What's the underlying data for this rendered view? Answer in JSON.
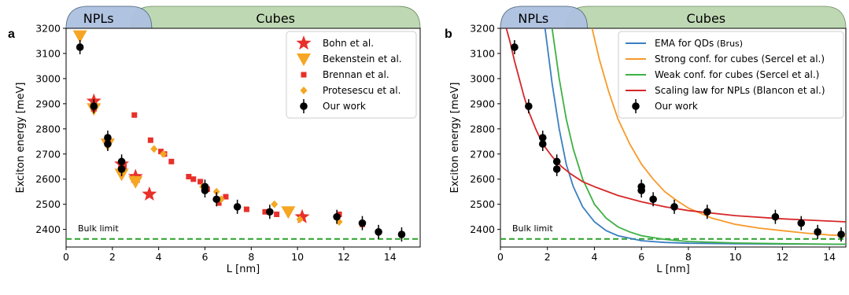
{
  "chart_data": [
    {
      "panel_label": "a",
      "type": "scatter",
      "xlabel": "L [nm]",
      "ylabel": "Exciton energy [meV]",
      "xlim": [
        0,
        15.3
      ],
      "ylim": [
        2330,
        3200
      ],
      "xticks": [
        0,
        2,
        4,
        6,
        8,
        10,
        12,
        14
      ],
      "yticks": [
        2400,
        2500,
        2600,
        2700,
        2800,
        2900,
        3000,
        3100,
        3200
      ],
      "grid": false,
      "legend_position": "top-right",
      "bands": [
        {
          "label": "NPLs",
          "color": "#c8d6f0",
          "x0": 0,
          "x1": 3.7
        },
        {
          "label": "Cubes",
          "color": "#bcd6b0",
          "x0": 2.8,
          "x1": 15.3
        }
      ],
      "reference_lines": [
        {
          "label": "Bulk limit",
          "y": 2362,
          "color": "#2ca02c",
          "style": "dashed"
        }
      ],
      "series": [
        {
          "name": "Bohn et al.",
          "marker": "star",
          "color": "#e8302a",
          "x": [
            1.2,
            2.4,
            3.0,
            3.6,
            10.2
          ],
          "y": [
            2910,
            2660,
            2610,
            2540,
            2450
          ]
        },
        {
          "name": "Bekenstein et al.",
          "marker": "triangle-down",
          "color": "#f5a623",
          "x": [
            0.6,
            1.2,
            1.8,
            2.4,
            3.0,
            9.6
          ],
          "y": [
            3170,
            2880,
            2740,
            2620,
            2590,
            2470
          ]
        },
        {
          "name": "Brennan et al.",
          "marker": "square",
          "color": "#e8302a",
          "x": [
            1.2,
            1.8,
            2.5,
            2.95,
            3.65,
            4.1,
            4.25,
            4.55,
            5.3,
            5.5,
            5.8,
            6.1,
            6.6,
            6.9,
            7.8,
            8.6,
            9.1,
            11.8,
            12.8
          ],
          "y": [
            2880,
            2760,
            2650,
            2855,
            2755,
            2710,
            2700,
            2670,
            2610,
            2600,
            2590,
            2560,
            2505,
            2530,
            2480,
            2470,
            2460,
            2460,
            2420
          ]
        },
        {
          "name": "Protesescu et al.",
          "marker": "diamond",
          "color": "#f5a623",
          "x": [
            1.2,
            1.8,
            2.4,
            2.9,
            3.8,
            4.2,
            5.9,
            6.5,
            6.7,
            9.0,
            10.1,
            11.8
          ],
          "y": [
            2890,
            2740,
            2630,
            2600,
            2720,
            2700,
            2570,
            2550,
            2520,
            2500,
            2440,
            2430
          ]
        },
        {
          "name": "Our work",
          "marker": "circle-errorbar",
          "color": "#000000",
          "x": [
            0.6,
            1.2,
            1.8,
            1.8,
            2.4,
            2.4,
            6.0,
            6.0,
            6.5,
            7.4,
            8.8,
            11.7,
            12.8,
            13.5,
            14.5
          ],
          "y": [
            3125,
            2890,
            2765,
            2740,
            2670,
            2640,
            2570,
            2555,
            2520,
            2490,
            2470,
            2450,
            2425,
            2390,
            2380
          ]
        }
      ]
    },
    {
      "panel_label": "b",
      "type": "line",
      "xlabel": "L [nm]",
      "ylabel": "Exciton energy [meV]",
      "xlim": [
        0,
        14.7
      ],
      "ylim": [
        2330,
        3200
      ],
      "xticks": [
        0,
        2,
        4,
        6,
        8,
        10,
        12,
        14
      ],
      "yticks": [
        2400,
        2500,
        2600,
        2700,
        2800,
        2900,
        3000,
        3100,
        3200
      ],
      "grid": false,
      "legend_position": "top-right",
      "bands": [
        {
          "label": "NPLs",
          "color": "#c8d6f0",
          "x0": 0,
          "x1": 3.7
        },
        {
          "label": "Cubes",
          "color": "#bcd6b0",
          "x0": 2.8,
          "x1": 14.7
        }
      ],
      "reference_lines": [
        {
          "label": "Bulk limit",
          "y": 2362,
          "color": "#2ca02c",
          "style": "dashed"
        }
      ],
      "series": [
        {
          "name": "EMA for QDs",
          "name_suffix": "(Brus)",
          "color": "#3a7fc0",
          "x": [
            1.9,
            2.2,
            2.5,
            2.8,
            3.1,
            3.5,
            4.0,
            4.5,
            5.0,
            6.0,
            7.0,
            8.0,
            10.0,
            12.0,
            14.7
          ],
          "y": [
            3200,
            2980,
            2800,
            2660,
            2570,
            2490,
            2430,
            2395,
            2375,
            2355,
            2348,
            2345,
            2343,
            2342,
            2341
          ]
        },
        {
          "name": "Strong conf. for cubes (Sercel et al.)",
          "color": "#f79a2a",
          "x": [
            3.9,
            4.2,
            4.6,
            5.0,
            5.5,
            6.0,
            6.5,
            7.0,
            7.5,
            8.0,
            9.0,
            10.0,
            11.0,
            12.0,
            13.0,
            14.0,
            14.7
          ],
          "y": [
            3200,
            3080,
            2950,
            2840,
            2740,
            2660,
            2600,
            2550,
            2515,
            2485,
            2445,
            2420,
            2405,
            2395,
            2385,
            2378,
            2375
          ]
        },
        {
          "name": "Weak conf. for cubes (Sercel et al.)",
          "color": "#3db043",
          "x": [
            2.2,
            2.5,
            2.8,
            3.1,
            3.5,
            4.0,
            4.5,
            5.0,
            5.5,
            6.0,
            7.0,
            8.0,
            10.0,
            12.0,
            14.7
          ],
          "y": [
            3200,
            3000,
            2840,
            2720,
            2600,
            2500,
            2445,
            2410,
            2390,
            2375,
            2360,
            2352,
            2346,
            2343,
            2341
          ]
        },
        {
          "name": "Scaling law for NPLs (Blancon et al.)",
          "color": "#d62728",
          "x": [
            0.25,
            0.4,
            0.6,
            0.8,
            1.0,
            1.2,
            1.5,
            1.8,
            2.2,
            2.6,
            3.0,
            3.5,
            4.0,
            5.0,
            6.0,
            7.0,
            8.0,
            10.0,
            12.0,
            14.7
          ],
          "y": [
            3200,
            3150,
            3070,
            3000,
            2930,
            2870,
            2800,
            2740,
            2690,
            2650,
            2620,
            2590,
            2570,
            2535,
            2510,
            2490,
            2475,
            2455,
            2442,
            2430
          ]
        },
        {
          "name": "Our work",
          "marker": "circle-errorbar",
          "color": "#000000",
          "x": [
            0.6,
            1.2,
            1.8,
            1.8,
            2.4,
            2.4,
            6.0,
            6.0,
            6.5,
            7.4,
            8.8,
            11.7,
            12.8,
            13.5,
            14.5
          ],
          "y": [
            3125,
            2890,
            2765,
            2740,
            2670,
            2640,
            2570,
            2555,
            2520,
            2490,
            2470,
            2450,
            2425,
            2390,
            2380
          ]
        }
      ]
    }
  ]
}
